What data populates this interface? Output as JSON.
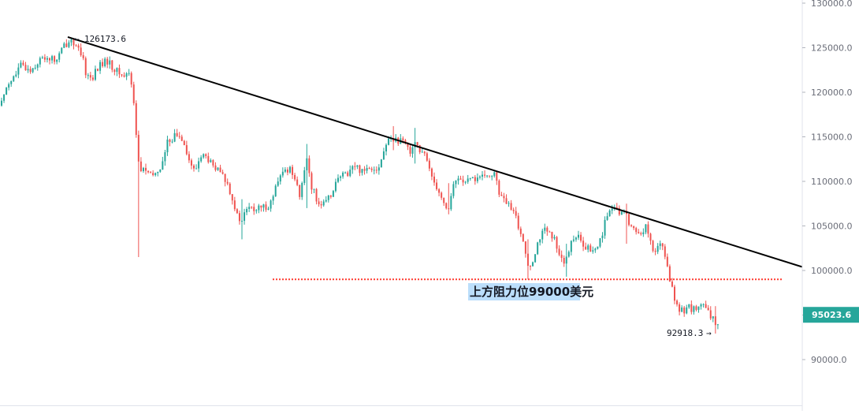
{
  "chart_data": {
    "type": "candlestick",
    "title": "",
    "xlabel": "",
    "ylabel": "",
    "ylim": [
      84500,
      131000
    ],
    "y_ticks": [
      {
        "value": 90000,
        "label": "90000.0"
      },
      {
        "value": 95000,
        "label": "95000.0"
      },
      {
        "value": 100000,
        "label": "100000.0"
      },
      {
        "value": 105000,
        "label": "105000.0"
      },
      {
        "value": 110000,
        "label": "110000.0"
      },
      {
        "value": 115000,
        "label": "115000.0"
      },
      {
        "value": 120000,
        "label": "120000.0"
      },
      {
        "value": 125000,
        "label": "125000.0"
      },
      {
        "value": 130000,
        "label": "130000.0"
      }
    ],
    "price_path": [
      [
        0,
        118500
      ],
      [
        8,
        121000
      ],
      [
        18,
        121800
      ],
      [
        25,
        123000
      ],
      [
        38,
        122500
      ],
      [
        48,
        123500
      ],
      [
        58,
        124000
      ],
      [
        70,
        123500
      ],
      [
        80,
        125200
      ],
      [
        90,
        126000
      ],
      [
        97,
        124800
      ],
      [
        103,
        124000
      ],
      [
        108,
        122200
      ],
      [
        115,
        121500
      ],
      [
        125,
        123000
      ],
      [
        135,
        123500
      ],
      [
        145,
        122500
      ],
      [
        155,
        121800
      ],
      [
        163,
        122200
      ],
      [
        168,
        120000
      ],
      [
        172,
        115000
      ],
      [
        176,
        111000
      ],
      [
        182,
        111500
      ],
      [
        190,
        110500
      ],
      [
        198,
        111000
      ],
      [
        205,
        112000
      ],
      [
        212,
        114500
      ],
      [
        222,
        115200
      ],
      [
        232,
        114800
      ],
      [
        238,
        112500
      ],
      [
        246,
        111000
      ],
      [
        254,
        113000
      ],
      [
        262,
        112600
      ],
      [
        270,
        111500
      ],
      [
        278,
        111000
      ],
      [
        286,
        110000
      ],
      [
        293,
        108500
      ],
      [
        300,
        106000
      ],
      [
        306,
        105500
      ],
      [
        312,
        107000
      ],
      [
        322,
        106800
      ],
      [
        332,
        107000
      ],
      [
        342,
        107500
      ],
      [
        350,
        109500
      ],
      [
        358,
        111000
      ],
      [
        366,
        111500
      ],
      [
        374,
        110500
      ],
      [
        380,
        108000
      ],
      [
        388,
        113000
      ],
      [
        394,
        109500
      ],
      [
        400,
        108200
      ],
      [
        408,
        107200
      ],
      [
        416,
        108000
      ],
      [
        424,
        109800
      ],
      [
        432,
        110500
      ],
      [
        440,
        111000
      ],
      [
        448,
        111800
      ],
      [
        456,
        111300
      ],
      [
        464,
        111500
      ],
      [
        472,
        111700
      ],
      [
        480,
        111500
      ],
      [
        488,
        114000
      ],
      [
        496,
        115000
      ],
      [
        504,
        114500
      ],
      [
        512,
        114200
      ],
      [
        520,
        113500
      ],
      [
        526,
        114700
      ],
      [
        532,
        113300
      ],
      [
        538,
        112800
      ],
      [
        544,
        111500
      ],
      [
        550,
        110000
      ],
      [
        556,
        109000
      ],
      [
        562,
        107500
      ],
      [
        568,
        106800
      ],
      [
        574,
        109500
      ],
      [
        582,
        110500
      ],
      [
        590,
        109800
      ],
      [
        598,
        110200
      ],
      [
        606,
        110500
      ],
      [
        614,
        110300
      ],
      [
        622,
        111000
      ],
      [
        628,
        110500
      ],
      [
        634,
        108200
      ],
      [
        640,
        107800
      ],
      [
        646,
        107000
      ],
      [
        652,
        106200
      ],
      [
        658,
        104800
      ],
      [
        664,
        102600
      ],
      [
        670,
        100500
      ],
      [
        676,
        101500
      ],
      [
        682,
        103500
      ],
      [
        690,
        104500
      ],
      [
        698,
        103800
      ],
      [
        704,
        103200
      ],
      [
        710,
        101800
      ],
      [
        716,
        100600
      ],
      [
        722,
        102500
      ],
      [
        728,
        104200
      ],
      [
        734,
        103500
      ],
      [
        740,
        102300
      ],
      [
        746,
        102500
      ],
      [
        752,
        102000
      ],
      [
        758,
        102800
      ],
      [
        764,
        104500
      ],
      [
        770,
        106500
      ],
      [
        776,
        106800
      ],
      [
        782,
        106600
      ],
      [
        788,
        106500
      ],
      [
        794,
        106200
      ],
      [
        800,
        104800
      ],
      [
        806,
        104400
      ],
      [
        812,
        104200
      ],
      [
        818,
        105000
      ],
      [
        824,
        103300
      ],
      [
        830,
        101600
      ],
      [
        836,
        103400
      ],
      [
        842,
        102100
      ],
      [
        846,
        100000
      ],
      [
        851,
        98600
      ],
      [
        856,
        96000
      ],
      [
        861,
        95500
      ],
      [
        866,
        95500
      ],
      [
        872,
        96000
      ],
      [
        880,
        95500
      ],
      [
        888,
        96200
      ],
      [
        894,
        95700
      ],
      [
        900,
        94800
      ],
      [
        904,
        94400
      ],
      [
        908,
        93800
      ],
      [
        912,
        95000
      ]
    ],
    "wicks": [
      {
        "x": 175,
        "low": 101500,
        "high": 113500
      },
      {
        "x": 304,
        "low": 103500,
        "high": 108000
      },
      {
        "x": 388,
        "low": 107000,
        "high": 114200
      },
      {
        "x": 498,
        "low": 113500,
        "high": 116200
      },
      {
        "x": 524,
        "low": 112000,
        "high": 116000
      },
      {
        "x": 566,
        "low": 106300,
        "high": 109800
      },
      {
        "x": 668,
        "low": 99000,
        "high": 103500
      },
      {
        "x": 718,
        "low": 99300,
        "high": 103000
      },
      {
        "x": 792,
        "low": 103000,
        "high": 107500
      },
      {
        "x": 906,
        "low": 92918.3,
        "high": 96000
      }
    ],
    "colors": {
      "up": "#26a69a",
      "down": "#ef5350",
      "axis_text": "#6a6d78",
      "current_badge": "#26a69a"
    },
    "trendline": {
      "from": [
        86,
        126200
      ],
      "to": [
        1018,
        100400
      ],
      "color": "#000000"
    },
    "resistance_level": {
      "value": 99000,
      "x_from": 346,
      "x_to": 992,
      "color": "#ff3b30"
    },
    "annotations": {
      "high_label": "126173.6",
      "low_label": "92918.3",
      "resistance_text": "上方阻力位99000美元"
    },
    "current_price": {
      "value": 95023.6,
      "label": "95023.6"
    }
  }
}
